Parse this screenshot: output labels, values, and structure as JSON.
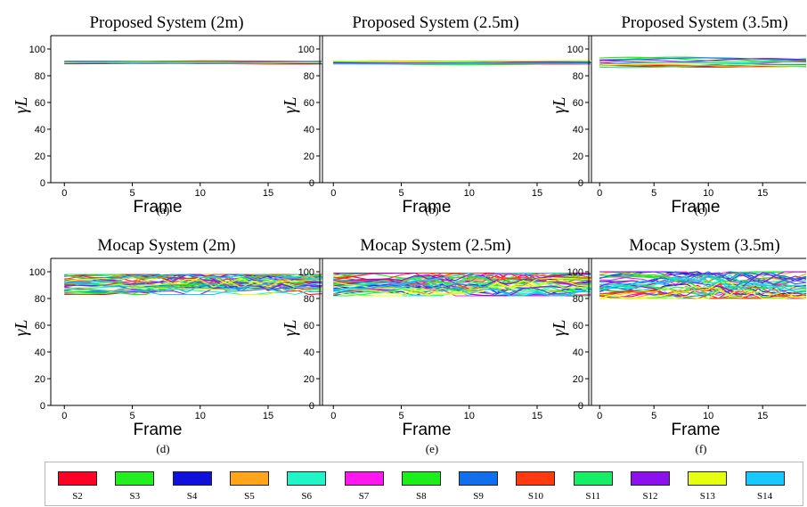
{
  "chart_data": [
    {
      "type": "line",
      "panel_label": "(a)",
      "title": "Proposed System (2m)",
      "xlabel": "Frame",
      "ylabel": "γL",
      "xlim": [
        -1,
        19
      ],
      "ylim": [
        0,
        110
      ],
      "xticks": [
        0,
        5,
        10,
        15
      ],
      "yticks": [
        0,
        20,
        40,
        60,
        80,
        100
      ],
      "grid": false,
      "band": [
        89,
        91
      ],
      "wobble": 0.25,
      "trend": 0
    },
    {
      "type": "line",
      "panel_label": "(b)",
      "title": "Proposed System (2.5m)",
      "xlabel": "Frame",
      "ylabel": "γL",
      "xlim": [
        -1,
        19
      ],
      "ylim": [
        0,
        110
      ],
      "xticks": [
        0,
        5,
        10,
        15
      ],
      "yticks": [
        0,
        20,
        40,
        60,
        80,
        100
      ],
      "grid": false,
      "band": [
        88.5,
        91
      ],
      "wobble": 0.4,
      "trend": 0
    },
    {
      "type": "line",
      "panel_label": "(c)",
      "title": "Proposed System (3.5m)",
      "xlabel": "Frame",
      "ylabel": "γL",
      "xlim": [
        -1,
        19
      ],
      "ylim": [
        0,
        110
      ],
      "xticks": [
        0,
        5,
        10,
        15
      ],
      "yticks": [
        0,
        20,
        40,
        60,
        80,
        100
      ],
      "grid": false,
      "band": [
        87,
        93
      ],
      "wobble": 1.2,
      "trend": 0
    },
    {
      "type": "line",
      "panel_label": "(d)",
      "title": "Mocap System (2m)",
      "xlabel": "Frame",
      "ylabel": "γL",
      "xlim": [
        -1,
        19
      ],
      "ylim": [
        0,
        110
      ],
      "xticks": [
        0,
        5,
        10,
        15
      ],
      "yticks": [
        0,
        20,
        40,
        60,
        80,
        100
      ],
      "grid": false,
      "band": [
        84,
        97
      ],
      "wobble": 3,
      "trend": 1
    },
    {
      "type": "line",
      "panel_label": "(e)",
      "title": "Mocap System (2.5m)",
      "xlabel": "Frame",
      "ylabel": "γL",
      "xlim": [
        -1,
        19
      ],
      "ylim": [
        0,
        110
      ],
      "xticks": [
        0,
        5,
        10,
        15
      ],
      "yticks": [
        0,
        20,
        40,
        60,
        80,
        100
      ],
      "grid": false,
      "band": [
        83,
        98
      ],
      "wobble": 3.5,
      "trend": 1
    },
    {
      "type": "line",
      "panel_label": "(f)",
      "title": "Mocap System (3.5m)",
      "xlabel": "Frame",
      "ylabel": "γL",
      "xlim": [
        -1,
        19
      ],
      "ylim": [
        0,
        110
      ],
      "xticks": [
        0,
        5,
        10,
        15
      ],
      "yticks": [
        0,
        20,
        40,
        60,
        80,
        100
      ],
      "grid": false,
      "band": [
        81,
        99
      ],
      "wobble": 4,
      "trend": 1
    }
  ],
  "legend": [
    {
      "label": "S2",
      "color": "#ff0026"
    },
    {
      "label": "S3",
      "color": "#22ee22"
    },
    {
      "label": "S4",
      "color": "#1010dd"
    },
    {
      "label": "S5",
      "color": "#ffa51a"
    },
    {
      "label": "S6",
      "color": "#1ff5c7"
    },
    {
      "label": "S7",
      "color": "#ff18ee"
    },
    {
      "label": "S8",
      "color": "#1cee1c"
    },
    {
      "label": "S9",
      "color": "#116fee"
    },
    {
      "label": "S10",
      "color": "#ff3a10"
    },
    {
      "label": "S11",
      "color": "#16ee66"
    },
    {
      "label": "S12",
      "color": "#8d10ee"
    },
    {
      "label": "S13",
      "color": "#e6ff10"
    },
    {
      "label": "S14",
      "color": "#18c8ff"
    }
  ]
}
